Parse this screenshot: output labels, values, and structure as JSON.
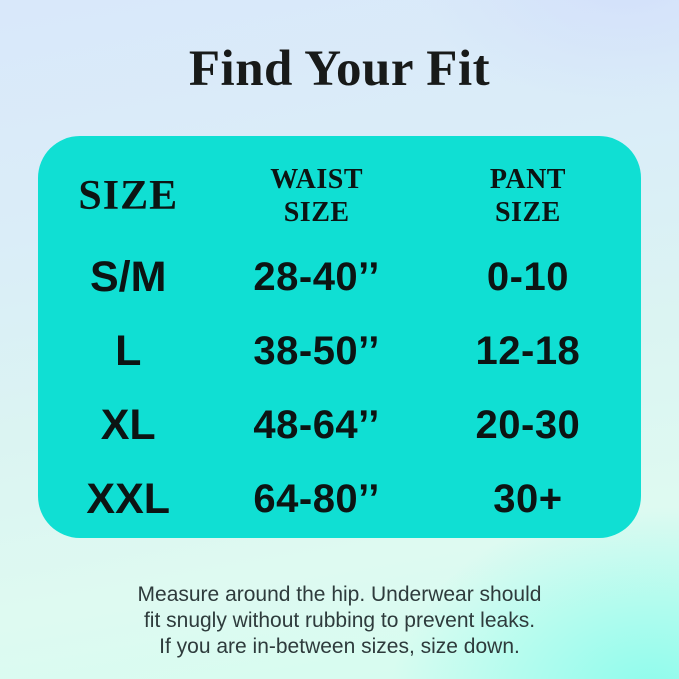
{
  "page": {
    "title": "Find Your Fit"
  },
  "table": {
    "headers": {
      "size": "SIZE",
      "waist": "WAIST\nSIZE",
      "pant": "PANT\nSIZE"
    },
    "rows": [
      {
        "size": "S/M",
        "waist": "28-40’’",
        "pant": "0-10"
      },
      {
        "size": "L",
        "waist": "38-50’’",
        "pant": "12-18"
      },
      {
        "size": "XL",
        "waist": "48-64’’",
        "pant": "20-30"
      },
      {
        "size": "XXL",
        "waist": "64-80’’",
        "pant": "30+"
      }
    ]
  },
  "footer": {
    "note": "Measure around the hip. Underwear should\nfit snugly without rubbing to prevent leaks.\nIf you are in-between sizes, size down."
  },
  "colors": {
    "card_background": "#10dfd3",
    "title_text": "#181a19",
    "table_text": "#0c1413",
    "note_text": "#2e3b3c",
    "background_top": "#d9e8fa",
    "background_bottom": "#c9fdf0"
  },
  "chart_data": {
    "type": "table",
    "title": "Find Your Fit",
    "columns": [
      "SIZE",
      "WAIST SIZE",
      "PANT SIZE"
    ],
    "rows": [
      [
        "S/M",
        "28-40’’",
        "0-10"
      ],
      [
        "L",
        "38-50’’",
        "12-18"
      ],
      [
        "XL",
        "48-64’’",
        "20-30"
      ],
      [
        "XXL",
        "64-80’’",
        "30+"
      ]
    ],
    "note": "Measure around the hip. Underwear should fit snugly without rubbing to prevent leaks. If you are in-between sizes, size down."
  }
}
